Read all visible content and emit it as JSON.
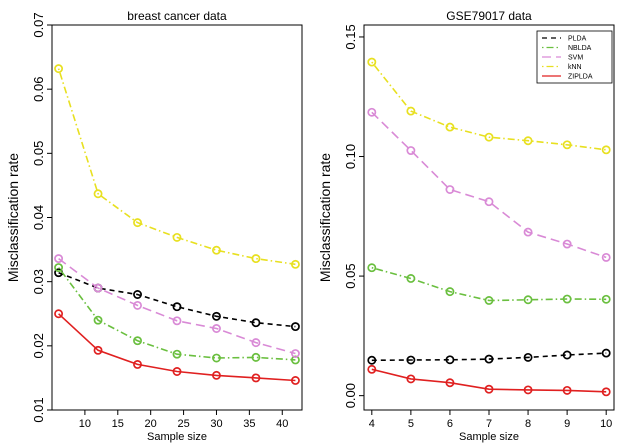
{
  "chart_data": [
    {
      "type": "line",
      "title": "breast cancer data",
      "xlabel": "Sample size",
      "ylabel": "Misclassification rate",
      "xlim": [
        5,
        43
      ],
      "ylim": [
        0.01,
        0.07
      ],
      "xticks": [
        "10",
        "15",
        "20",
        "25",
        "30",
        "35",
        "40"
      ],
      "xtick_values": [
        10,
        15,
        20,
        25,
        30,
        35,
        40
      ],
      "yticks": [
        "0.01",
        "0.02",
        "0.03",
        "0.04",
        "0.05",
        "0.06",
        "0.07"
      ],
      "ytick_values": [
        0.01,
        0.02,
        0.03,
        0.04,
        0.05,
        0.06,
        0.07
      ],
      "x": [
        6,
        12,
        18,
        24,
        30,
        36,
        42
      ],
      "legend": false,
      "grid": false,
      "series": [
        {
          "name": "PLDA",
          "values": [
            0.0314,
            0.029,
            0.028,
            0.0261,
            0.0246,
            0.0236,
            0.023
          ],
          "color": "#000000",
          "dash": "dashed"
        },
        {
          "name": "NBLDA",
          "values": [
            0.0322,
            0.024,
            0.0208,
            0.0187,
            0.0181,
            0.0182,
            0.0178
          ],
          "color": "#6abf3f",
          "dash": "dotdash"
        },
        {
          "name": "SVM",
          "values": [
            0.0336,
            0.029,
            0.0263,
            0.0239,
            0.0227,
            0.0205,
            0.0188
          ],
          "color": "#d98ad6",
          "dash": "longdash"
        },
        {
          "name": "kNN",
          "values": [
            0.0632,
            0.0437,
            0.0392,
            0.0369,
            0.0349,
            0.0336,
            0.0327
          ],
          "color": "#e8e020",
          "dash": "dotdash"
        },
        {
          "name": "ZIPLDA",
          "values": [
            0.025,
            0.0193,
            0.0171,
            0.016,
            0.0154,
            0.015,
            0.0146
          ],
          "color": "#e02020",
          "dash": "solid"
        }
      ]
    },
    {
      "type": "line",
      "title": "GSE79017 data",
      "xlabel": "Sample size",
      "ylabel": "Misclassification rate",
      "xlim": [
        3.8,
        10.2
      ],
      "ylim": [
        -0.006,
        0.155
      ],
      "xticks": [
        "4",
        "5",
        "6",
        "7",
        "8",
        "9",
        "10"
      ],
      "xtick_values": [
        4,
        5,
        6,
        7,
        8,
        9,
        10
      ],
      "yticks": [
        "0.00",
        "0.05",
        "0.10",
        "0.15"
      ],
      "ytick_values": [
        0,
        0.05,
        0.1,
        0.15
      ],
      "x": [
        4,
        5,
        6,
        7,
        8,
        9,
        10
      ],
      "legend": true,
      "legend_position": "top-right",
      "grid": false,
      "series": [
        {
          "name": "PLDA",
          "values": [
            0.0148,
            0.0149,
            0.015,
            0.0153,
            0.016,
            0.017,
            0.0178
          ],
          "color": "#000000",
          "dash": "dashed"
        },
        {
          "name": "NBLDA",
          "values": [
            0.0535,
            0.049,
            0.0435,
            0.0398,
            0.0401,
            0.0404,
            0.0403
          ],
          "color": "#6abf3f",
          "dash": "dotdash"
        },
        {
          "name": "SVM",
          "values": [
            0.1185,
            0.1025,
            0.0862,
            0.0811,
            0.0684,
            0.0634,
            0.0578
          ],
          "color": "#d98ad6",
          "dash": "longdash"
        },
        {
          "name": "kNN",
          "values": [
            0.1395,
            0.119,
            0.1123,
            0.1081,
            0.1066,
            0.1049,
            0.1028
          ],
          "color": "#e8e020",
          "dash": "dotdash"
        },
        {
          "name": "ZIPLDA",
          "values": [
            0.011,
            0.007,
            0.0054,
            0.0027,
            0.0024,
            0.0022,
            0.0016
          ],
          "color": "#e02020",
          "dash": "solid"
        }
      ]
    }
  ]
}
